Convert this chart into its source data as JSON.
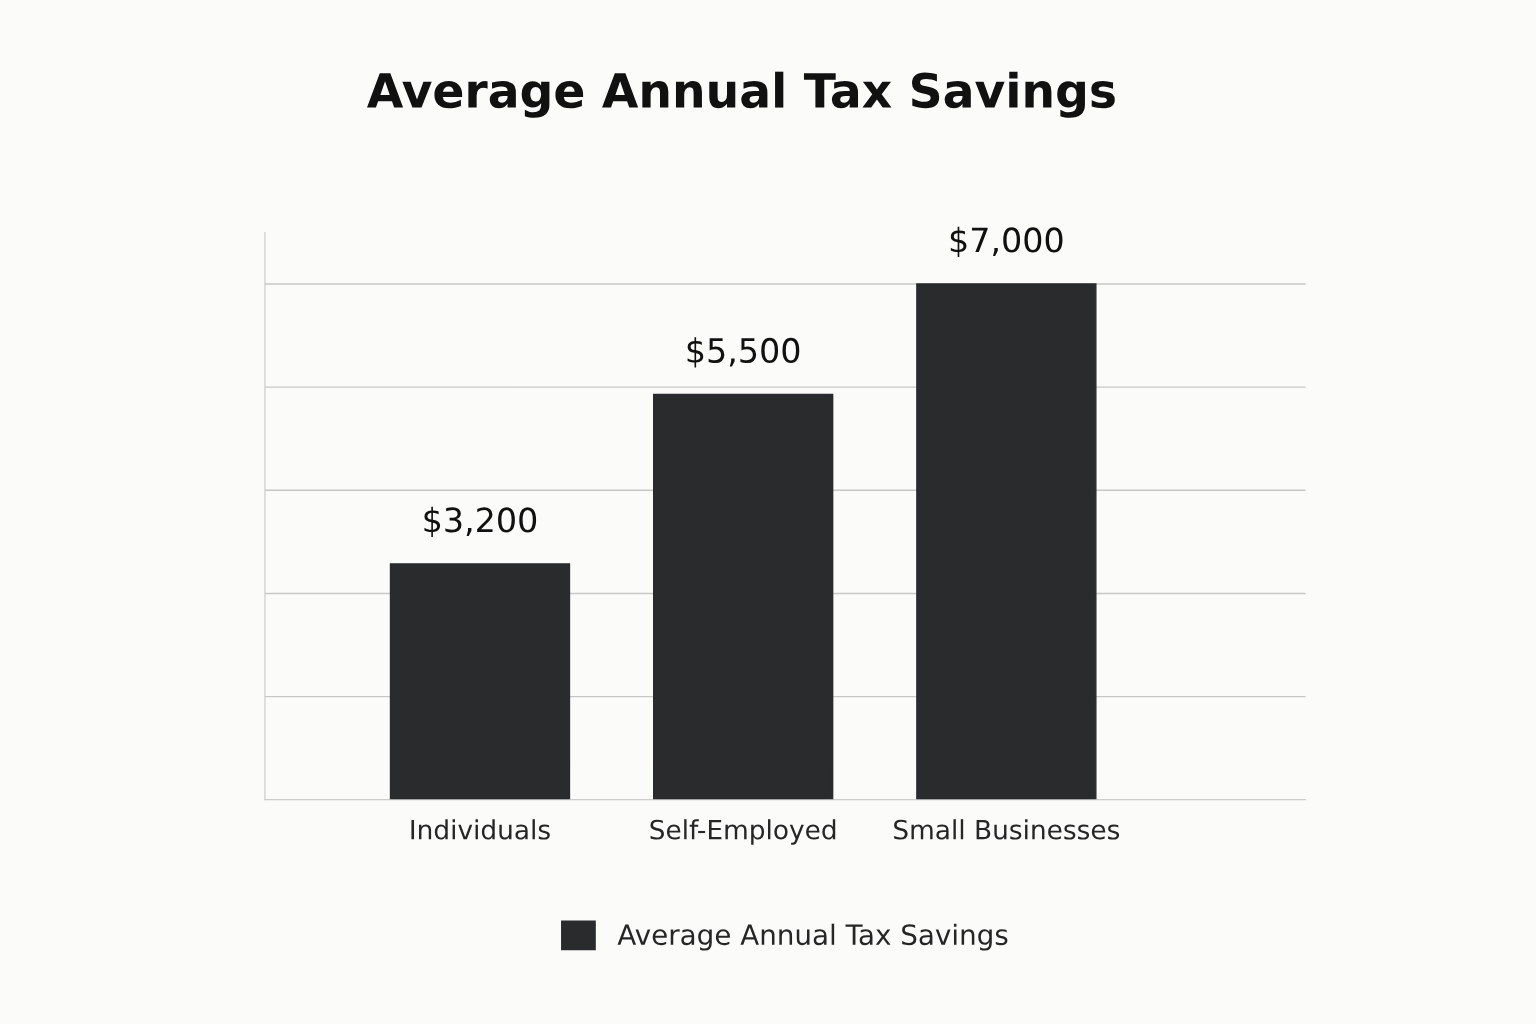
{
  "chart_data": {
    "type": "bar",
    "title": "Average Annual Tax Savings",
    "categories": [
      "Individuals",
      "Self-Employed",
      "Small Businesses"
    ],
    "series": [
      {
        "name": "Average Annual Tax Savings",
        "color": "#2a2b2d",
        "values": [
          3200,
          5500,
          7000
        ],
        "value_labels": [
          "$3,200",
          "$5,500",
          "$7,000"
        ]
      }
    ],
    "grid": "y",
    "legend": "bottom"
  }
}
